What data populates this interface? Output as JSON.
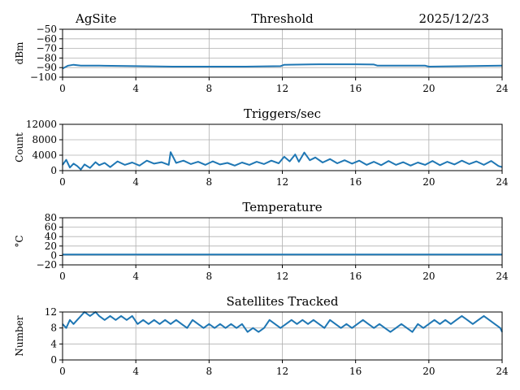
{
  "header": {
    "site": "AgSite",
    "date": "2025/12/23"
  },
  "chart_data": [
    {
      "type": "line",
      "title": "Threshold",
      "ylabel": "dBm",
      "xlim": [
        0,
        24
      ],
      "ylim": [
        -100,
        -50
      ],
      "xticks": [
        "0",
        "4",
        "8",
        "12",
        "16",
        "20",
        "24"
      ],
      "yticks": [
        "−50",
        "−60",
        "−70",
        "−80",
        "−90",
        "−100"
      ],
      "grid": true,
      "color": "#1f77b4",
      "x": [
        0,
        0.3,
        0.6,
        1,
        2,
        4,
        6,
        8,
        10,
        11.9,
        12.1,
        14,
        16,
        17,
        17.2,
        18,
        19.8,
        20,
        22,
        24
      ],
      "y": [
        -91,
        -88,
        -87,
        -88,
        -88,
        -88.5,
        -89,
        -89,
        -89,
        -88.5,
        -87,
        -86.5,
        -86.5,
        -86.8,
        -88,
        -88,
        -88,
        -89,
        -88.5,
        -88
      ]
    },
    {
      "type": "line",
      "title": "Triggers/sec",
      "ylabel": "Count",
      "xlim": [
        0,
        24
      ],
      "ylim": [
        0,
        12000
      ],
      "xticks": [
        "0",
        "4",
        "8",
        "12",
        "16",
        "20",
        "24"
      ],
      "yticks": [
        "0",
        "4000",
        "8000",
        "12000"
      ],
      "grid": true,
      "color": "#1f77b4",
      "x": [
        0,
        0.2,
        0.4,
        0.6,
        0.8,
        1,
        1.2,
        1.5,
        1.8,
        2,
        2.3,
        2.6,
        3,
        3.4,
        3.8,
        4.2,
        4.6,
        5,
        5.4,
        5.8,
        5.9,
        6.2,
        6.6,
        7,
        7.4,
        7.8,
        8.2,
        8.6,
        9,
        9.4,
        9.8,
        10.2,
        10.6,
        11,
        11.4,
        11.8,
        12.1,
        12.4,
        12.7,
        12.9,
        13.2,
        13.5,
        13.8,
        14.2,
        14.6,
        15,
        15.4,
        15.8,
        16.2,
        16.6,
        17,
        17.4,
        17.8,
        18.2,
        18.6,
        19,
        19.4,
        19.8,
        20.2,
        20.6,
        21,
        21.4,
        21.8,
        22.2,
        22.6,
        23,
        23.4,
        23.8,
        24
      ],
      "y": [
        1500,
        2800,
        800,
        1800,
        1200,
        300,
        1600,
        700,
        2200,
        1400,
        2000,
        900,
        2400,
        1500,
        2100,
        1300,
        2600,
        1800,
        2200,
        1500,
        4800,
        2000,
        2600,
        1700,
        2300,
        1500,
        2400,
        1600,
        2000,
        1300,
        2100,
        1500,
        2300,
        1700,
        2600,
        1900,
        3600,
        2400,
        4200,
        2300,
        4700,
        2700,
        3400,
        2100,
        3000,
        1900,
        2700,
        1800,
        2600,
        1500,
        2300,
        1400,
        2500,
        1500,
        2200,
        1300,
        2100,
        1500,
        2500,
        1400,
        2300,
        1600,
        2600,
        1700,
        2400,
        1500,
        2500,
        1200,
        900
      ]
    },
    {
      "type": "line",
      "title": "Temperature",
      "ylabel": "°C",
      "xlim": [
        0,
        24
      ],
      "ylim": [
        -20,
        80
      ],
      "xticks": [
        "0",
        "4",
        "8",
        "12",
        "16",
        "20",
        "24"
      ],
      "yticks": [
        "−20",
        "0",
        "20",
        "40",
        "60",
        "80"
      ],
      "grid": true,
      "color": "#1f77b4",
      "x": [
        0,
        24
      ],
      "y": [
        2,
        2
      ]
    },
    {
      "type": "line",
      "title": "Satellites Tracked",
      "ylabel": "Number",
      "xlim": [
        0,
        24
      ],
      "ylim": [
        0,
        12
      ],
      "xticks": [
        "0",
        "4",
        "8",
        "12",
        "16",
        "20",
        "24"
      ],
      "yticks": [
        "0",
        "4",
        "8",
        "12"
      ],
      "grid": true,
      "color": "#1f77b4",
      "x": [
        0,
        0.2,
        0.4,
        0.6,
        0.8,
        1,
        1.2,
        1.5,
        1.8,
        2,
        2.3,
        2.6,
        2.9,
        3.2,
        3.5,
        3.8,
        4.1,
        4.4,
        4.7,
        5,
        5.3,
        5.6,
        5.9,
        6.2,
        6.5,
        6.8,
        7.1,
        7.4,
        7.7,
        8,
        8.3,
        8.6,
        8.9,
        9.2,
        9.5,
        9.8,
        10.1,
        10.4,
        10.7,
        11,
        11.3,
        11.6,
        11.9,
        12.2,
        12.5,
        12.8,
        13.1,
        13.4,
        13.7,
        14,
        14.3,
        14.6,
        14.9,
        15.2,
        15.5,
        15.8,
        16.1,
        16.4,
        16.7,
        17,
        17.3,
        17.6,
        17.9,
        18.2,
        18.5,
        18.8,
        19.1,
        19.4,
        19.7,
        20,
        20.3,
        20.6,
        20.9,
        21.2,
        21.5,
        21.8,
        22.1,
        22.4,
        22.7,
        23,
        23.3,
        23.6,
        23.9,
        24
      ],
      "y": [
        9,
        8,
        10,
        9,
        10,
        11,
        12,
        11,
        12,
        11,
        10,
        11,
        10,
        11,
        10,
        11,
        9,
        10,
        9,
        10,
        9,
        10,
        9,
        10,
        9,
        8,
        10,
        9,
        8,
        9,
        8,
        9,
        8,
        9,
        8,
        9,
        7,
        8,
        7,
        8,
        10,
        9,
        8,
        9,
        10,
        9,
        10,
        9,
        10,
        9,
        8,
        10,
        9,
        8,
        9,
        8,
        9,
        10,
        9,
        8,
        9,
        8,
        7,
        8,
        9,
        8,
        7,
        9,
        8,
        9,
        10,
        9,
        10,
        9,
        10,
        11,
        10,
        9,
        10,
        11,
        10,
        9,
        8,
        7
      ]
    }
  ]
}
